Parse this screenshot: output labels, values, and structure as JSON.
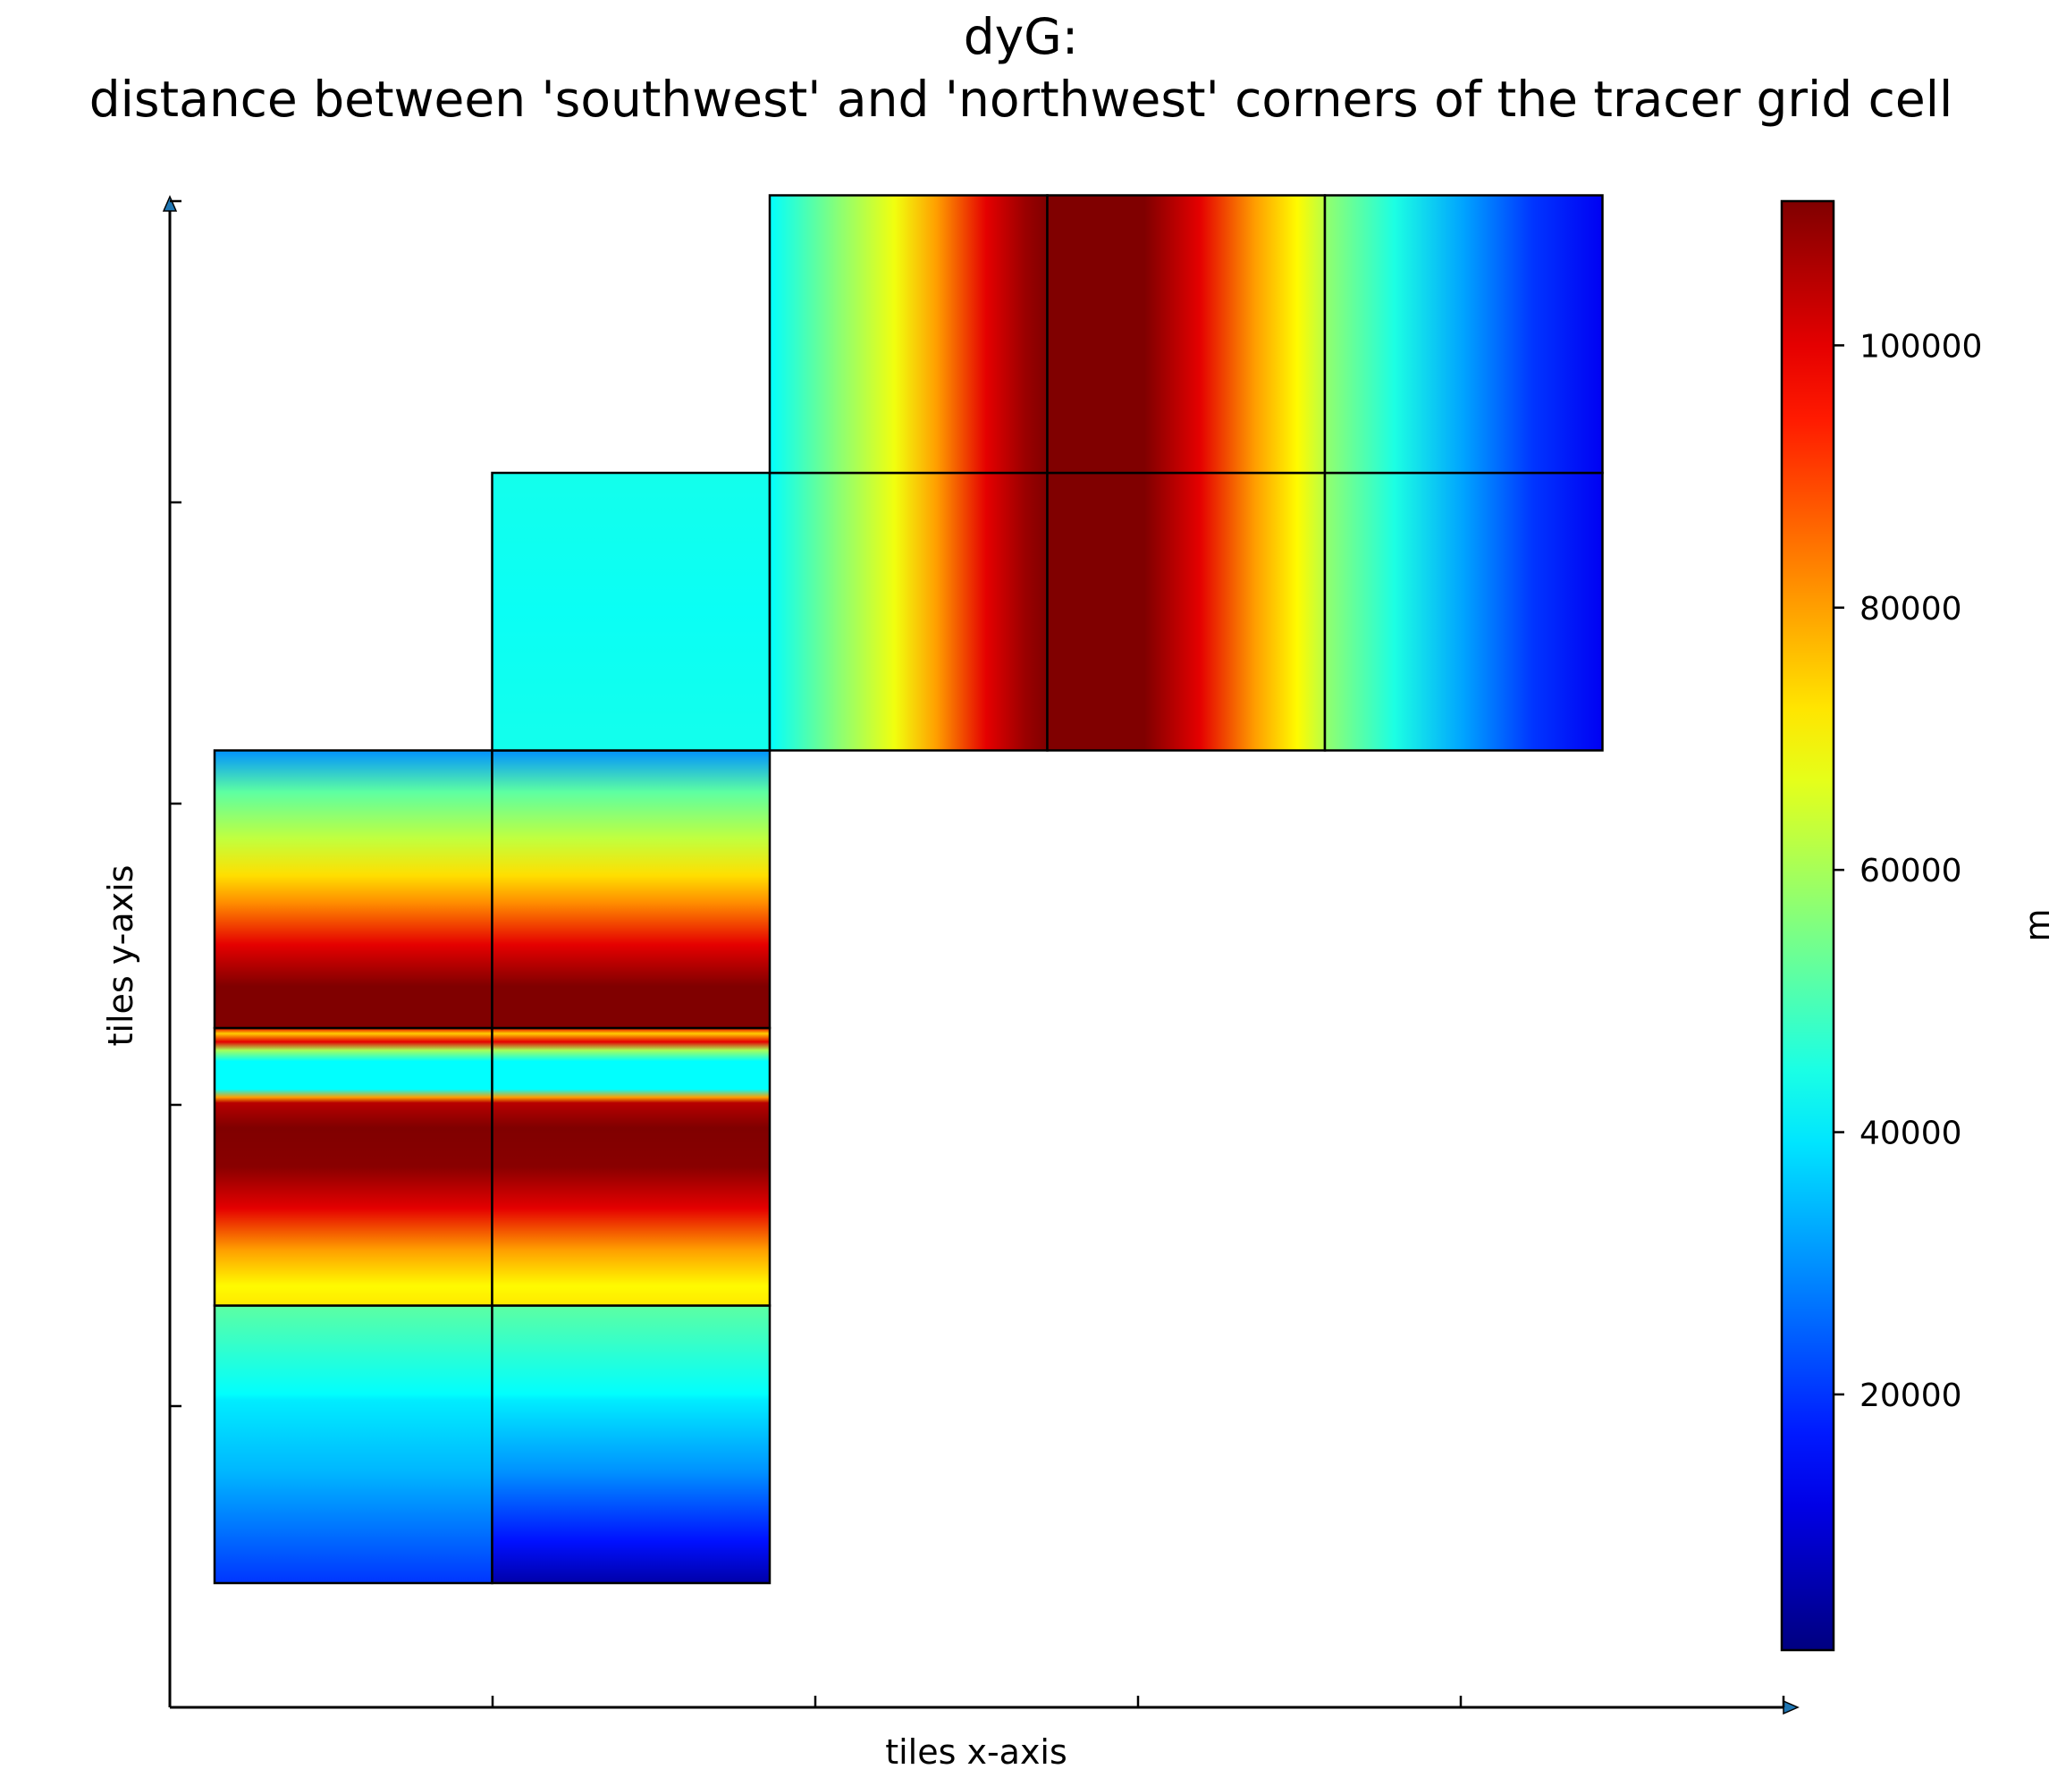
{
  "chart_data": {
    "type": "heatmap",
    "title_line1": "dyG:",
    "title_line2": "distance between 'southwest' and 'northwest' corners of the tracer grid cell",
    "xlabel": "tiles x-axis",
    "ylabel": "tiles y-axis",
    "colorbar": {
      "label": "m",
      "colormap": "jet",
      "vmin": 500,
      "vmax": 111000,
      "ticks": [
        20000,
        40000,
        60000,
        80000,
        100000
      ],
      "tick_labels": [
        "20000",
        "40000",
        "60000",
        "80000",
        "100000"
      ]
    },
    "x_range": [
      0,
      5
    ],
    "y_range": [
      0,
      5
    ],
    "tiles": [
      {
        "id": "tile-1",
        "col": 0,
        "row": 0,
        "pattern": "bottom-band-a"
      },
      {
        "id": "tile-2",
        "col": 1,
        "row": 0,
        "pattern": "bottom-band-b"
      },
      {
        "id": "tile-3",
        "col": 0,
        "row": 1,
        "pattern": "horizontal-bands"
      },
      {
        "id": "tile-4",
        "col": 1,
        "row": 1,
        "pattern": "horizontal-bands"
      },
      {
        "id": "tile-5",
        "col": 0,
        "row": 2,
        "pattern": "upper-bands"
      },
      {
        "id": "tile-6",
        "col": 1,
        "row": 2,
        "pattern": "upper-bands"
      },
      {
        "id": "tile-7",
        "col": 1,
        "row": 3,
        "pattern": "uniform-cyan"
      },
      {
        "id": "tile-8",
        "col": 2,
        "row": 3,
        "pattern": "vertical-bands-1"
      },
      {
        "id": "tile-9",
        "col": 3,
        "row": 3,
        "pattern": "vertical-bands-2"
      },
      {
        "id": "tile-10",
        "col": 4,
        "row": 3,
        "pattern": "vertical-bands-3"
      },
      {
        "id": "tile-11",
        "col": 2,
        "row": 4,
        "pattern": "vertical-bands-1"
      },
      {
        "id": "tile-12",
        "col": 3,
        "row": 4,
        "pattern": "vertical-bands-2"
      },
      {
        "id": "tile-13",
        "col": 4,
        "row": 4,
        "pattern": "vertical-bands-3"
      }
    ],
    "colors": {
      "axis": "#000000",
      "arrow_fill": "#1f77b4",
      "tile_border": "#000000"
    }
  }
}
